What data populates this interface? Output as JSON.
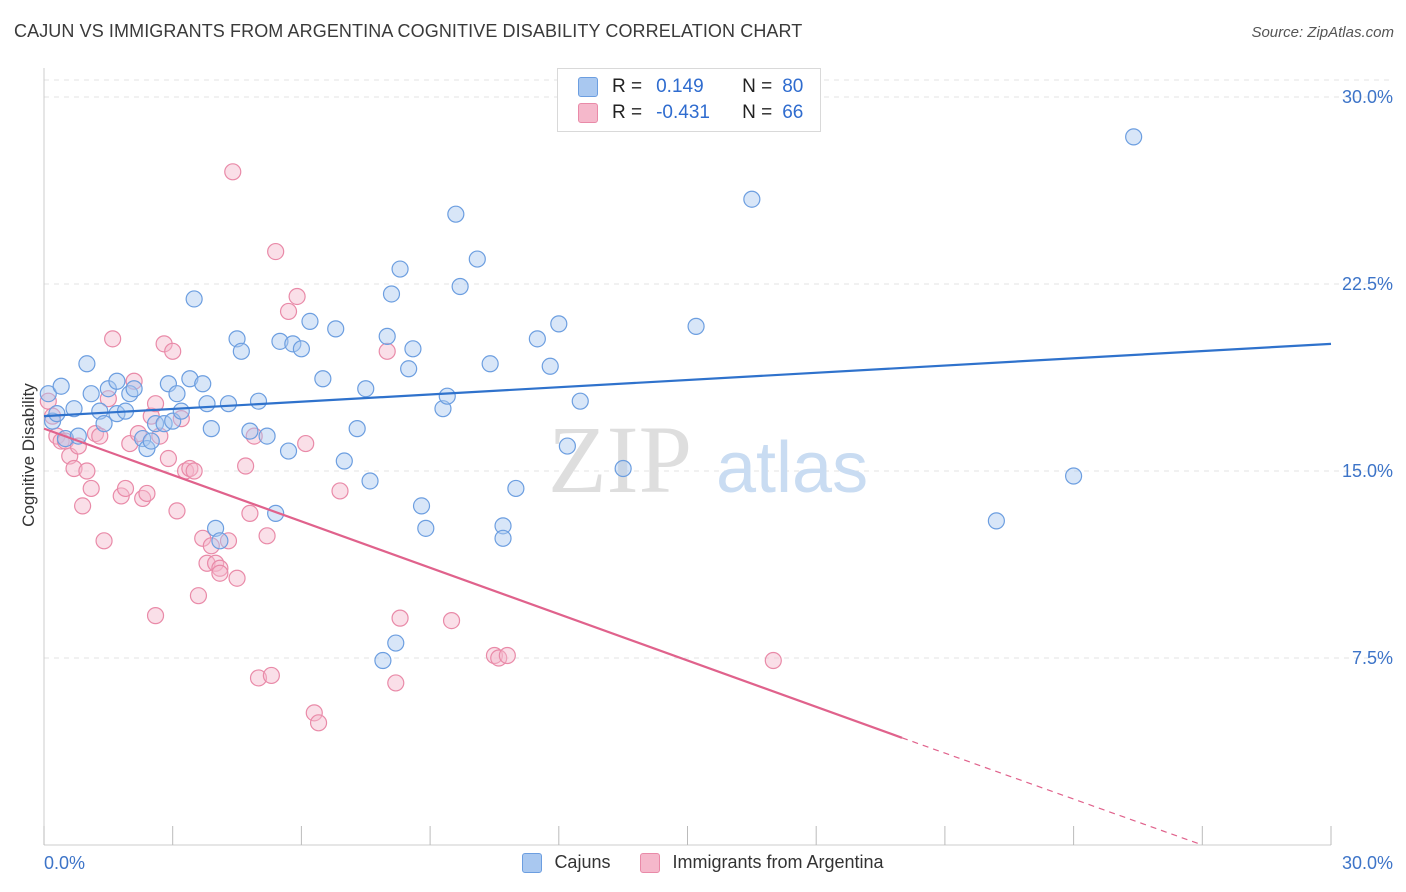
{
  "header": {
    "title": "CAJUN VS IMMIGRANTS FROM ARGENTINA COGNITIVE DISABILITY CORRELATION CHART",
    "source": "Source: ZipAtlas.com"
  },
  "watermark": {
    "zip": "ZIP",
    "atlas": "atlas"
  },
  "legend": {
    "rows": [
      {
        "r_label": "R =",
        "r_value": "0.149",
        "n_label": "N =",
        "n_value": "80",
        "color": "#a9c8f0"
      },
      {
        "r_label": "R =",
        "r_value": "-0.431",
        "n_label": "N =",
        "n_value": "66",
        "color": "#f5b8cb"
      }
    ]
  },
  "colors": {
    "cajun_fill": "#a9c8f0",
    "cajun_stroke": "#6c9ee0",
    "cajun_line": "#2f72cc",
    "arg_fill": "#f5b8cb",
    "arg_stroke": "#e98aa8",
    "arg_line": "#e0628c",
    "grid": "#e3e3e3",
    "tick_text": "#3d74c8"
  },
  "chart_data": {
    "type": "scatter",
    "title": "CAJUN VS IMMIGRANTS FROM ARGENTINA COGNITIVE DISABILITY CORRELATION CHART",
    "xlabel": "",
    "ylabel": "Cognitive Disability",
    "xlim": [
      0,
      30
    ],
    "ylim": [
      0,
      30
    ],
    "x_tick_labels": [
      "0.0%",
      "30.0%"
    ],
    "y_ticks": [
      7.5,
      15.0,
      22.5,
      30.0
    ],
    "y_tick_labels": [
      "7.5%",
      "15.0%",
      "22.5%",
      "30.0%"
    ],
    "grid": true,
    "legend_position": "top-center",
    "series": [
      {
        "name": "Cajuns",
        "trend": {
          "x": [
            0,
            30
          ],
          "y": [
            17.2,
            20.1
          ]
        },
        "points": [
          [
            0.1,
            18.1
          ],
          [
            0.2,
            17.0
          ],
          [
            0.3,
            17.3
          ],
          [
            0.4,
            18.4
          ],
          [
            0.5,
            16.3
          ],
          [
            0.7,
            17.5
          ],
          [
            0.8,
            16.4
          ],
          [
            1.0,
            19.3
          ],
          [
            1.1,
            18.1
          ],
          [
            1.3,
            17.4
          ],
          [
            1.4,
            16.9
          ],
          [
            1.5,
            18.3
          ],
          [
            1.7,
            17.3
          ],
          [
            1.7,
            18.6
          ],
          [
            1.9,
            17.4
          ],
          [
            2.0,
            18.1
          ],
          [
            2.1,
            18.3
          ],
          [
            2.3,
            16.3
          ],
          [
            2.4,
            15.9
          ],
          [
            2.5,
            16.2
          ],
          [
            2.6,
            16.9
          ],
          [
            2.8,
            16.9
          ],
          [
            2.9,
            18.5
          ],
          [
            3.0,
            17.0
          ],
          [
            3.1,
            18.1
          ],
          [
            3.2,
            17.4
          ],
          [
            3.4,
            18.7
          ],
          [
            3.5,
            21.9
          ],
          [
            3.7,
            18.5
          ],
          [
            3.8,
            17.7
          ],
          [
            3.9,
            16.7
          ],
          [
            4.0,
            12.7
          ],
          [
            4.1,
            12.2
          ],
          [
            4.3,
            17.7
          ],
          [
            4.5,
            20.3
          ],
          [
            4.6,
            19.8
          ],
          [
            4.8,
            16.6
          ],
          [
            5.0,
            17.8
          ],
          [
            5.2,
            16.4
          ],
          [
            5.4,
            13.3
          ],
          [
            5.5,
            20.2
          ],
          [
            5.7,
            15.8
          ],
          [
            5.8,
            20.1
          ],
          [
            6.0,
            19.9
          ],
          [
            6.2,
            21.0
          ],
          [
            6.5,
            18.7
          ],
          [
            6.8,
            20.7
          ],
          [
            7.0,
            15.4
          ],
          [
            7.3,
            16.7
          ],
          [
            7.5,
            18.3
          ],
          [
            7.6,
            14.6
          ],
          [
            8.1,
            22.1
          ],
          [
            8.0,
            20.4
          ],
          [
            8.3,
            23.1
          ],
          [
            8.2,
            8.1
          ],
          [
            7.9,
            7.4
          ],
          [
            8.5,
            19.1
          ],
          [
            8.6,
            19.9
          ],
          [
            8.8,
            13.6
          ],
          [
            8.9,
            12.7
          ],
          [
            9.3,
            17.5
          ],
          [
            9.4,
            18.0
          ],
          [
            9.6,
            25.3
          ],
          [
            9.7,
            22.4
          ],
          [
            10.1,
            23.5
          ],
          [
            10.4,
            19.3
          ],
          [
            10.7,
            12.8
          ],
          [
            10.7,
            12.3
          ],
          [
            11.0,
            14.3
          ],
          [
            11.5,
            20.3
          ],
          [
            11.8,
            19.2
          ],
          [
            12.0,
            20.9
          ],
          [
            12.2,
            16.0
          ],
          [
            12.5,
            17.8
          ],
          [
            13.5,
            15.1
          ],
          [
            15.2,
            20.8
          ],
          [
            16.5,
            25.9
          ],
          [
            22.2,
            13.0
          ],
          [
            24.0,
            14.8
          ],
          [
            25.4,
            28.4
          ]
        ]
      },
      {
        "name": "Immigrants from Argentina",
        "trend": {
          "x": [
            0,
            20
          ],
          "y": [
            16.7,
            4.3
          ],
          "dash_x": [
            20,
            27
          ],
          "dash_y": [
            4.3,
            0
          ]
        },
        "points": [
          [
            0.1,
            17.8
          ],
          [
            0.2,
            17.2
          ],
          [
            0.3,
            16.4
          ],
          [
            0.4,
            16.2
          ],
          [
            0.5,
            16.2
          ],
          [
            0.6,
            15.6
          ],
          [
            0.7,
            15.1
          ],
          [
            0.8,
            16.0
          ],
          [
            0.9,
            13.6
          ],
          [
            1.0,
            15.0
          ],
          [
            1.1,
            14.3
          ],
          [
            1.2,
            16.5
          ],
          [
            1.3,
            16.4
          ],
          [
            1.4,
            12.2
          ],
          [
            1.5,
            17.9
          ],
          [
            1.6,
            20.3
          ],
          [
            1.8,
            14.0
          ],
          [
            1.9,
            14.3
          ],
          [
            2.0,
            16.1
          ],
          [
            2.1,
            18.6
          ],
          [
            2.2,
            16.5
          ],
          [
            2.3,
            13.9
          ],
          [
            2.4,
            14.1
          ],
          [
            2.5,
            17.2
          ],
          [
            2.6,
            17.7
          ],
          [
            2.6,
            9.2
          ],
          [
            2.7,
            16.4
          ],
          [
            2.8,
            20.1
          ],
          [
            2.9,
            15.5
          ],
          [
            3.0,
            19.8
          ],
          [
            3.1,
            13.4
          ],
          [
            3.2,
            17.1
          ],
          [
            3.3,
            15.0
          ],
          [
            3.4,
            15.1
          ],
          [
            3.5,
            15.0
          ],
          [
            3.6,
            10.0
          ],
          [
            3.7,
            12.3
          ],
          [
            3.8,
            11.3
          ],
          [
            3.9,
            12.0
          ],
          [
            4.0,
            11.3
          ],
          [
            4.1,
            11.1
          ],
          [
            4.1,
            10.9
          ],
          [
            4.3,
            12.2
          ],
          [
            4.4,
            27.0
          ],
          [
            4.5,
            10.7
          ],
          [
            4.7,
            15.2
          ],
          [
            4.8,
            13.3
          ],
          [
            4.9,
            16.4
          ],
          [
            5.0,
            6.7
          ],
          [
            5.2,
            12.4
          ],
          [
            5.3,
            6.8
          ],
          [
            5.4,
            23.8
          ],
          [
            5.7,
            21.4
          ],
          [
            5.9,
            22.0
          ],
          [
            6.1,
            16.1
          ],
          [
            6.3,
            5.3
          ],
          [
            6.4,
            4.9
          ],
          [
            6.9,
            14.2
          ],
          [
            8.0,
            19.8
          ],
          [
            8.2,
            6.5
          ],
          [
            9.5,
            9.0
          ],
          [
            10.5,
            7.6
          ],
          [
            10.6,
            7.5
          ],
          [
            10.8,
            7.6
          ],
          [
            17.0,
            7.4
          ],
          [
            8.3,
            9.1
          ]
        ]
      }
    ]
  },
  "bottom_legend": {
    "items": [
      "Cajuns",
      "Immigrants from Argentina"
    ]
  }
}
